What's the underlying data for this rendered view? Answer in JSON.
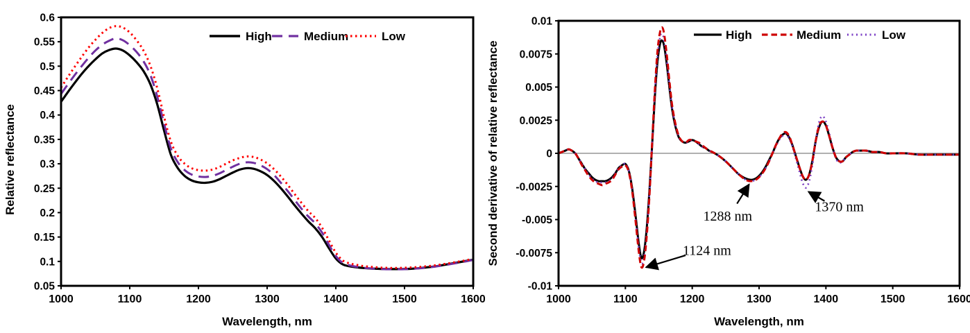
{
  "figure": {
    "background": "#ffffff",
    "description": "Two line charts of spectral reflectance"
  },
  "chart_data": [
    {
      "type": "line",
      "title": "",
      "xlabel": "Wavelength, nm",
      "ylabel": "Relative reflectance",
      "xlim": [
        1000,
        1600
      ],
      "ylim": [
        0.05,
        0.6
      ],
      "grid": false,
      "legend": {
        "position": "top-inside",
        "items": [
          {
            "label": "High",
            "color": "#000000",
            "dash": "solid"
          },
          {
            "label": "Medium",
            "color": "#7030A0",
            "dash": "dashed"
          },
          {
            "label": "Low",
            "color": "#FF0000",
            "dash": "dotted"
          }
        ]
      },
      "xticks": {
        "values": [
          1000,
          1100,
          1200,
          1300,
          1400,
          1500,
          1600
        ],
        "labels": [
          "1000",
          "1100",
          "1200",
          "1300",
          "1400",
          "1500",
          "1600"
        ]
      },
      "yticks": {
        "values": [
          0.6,
          0.55,
          0.5,
          0.45,
          0.4,
          0.35,
          0.3,
          0.25,
          0.2,
          0.15,
          0.1,
          0.05
        ],
        "labels": [
          "0.6",
          "0.55",
          "0.5",
          "0.45",
          "0.4",
          "0.35",
          "0.3",
          "0.25",
          "0.2",
          "0.15",
          "0.1",
          "0.05"
        ]
      },
      "x": [
        1000,
        1010,
        1020,
        1030,
        1040,
        1050,
        1060,
        1070,
        1080,
        1090,
        1100,
        1110,
        1120,
        1130,
        1140,
        1150,
        1160,
        1170,
        1180,
        1190,
        1200,
        1210,
        1220,
        1230,
        1240,
        1250,
        1260,
        1270,
        1280,
        1290,
        1300,
        1310,
        1320,
        1330,
        1340,
        1350,
        1360,
        1370,
        1380,
        1390,
        1400,
        1410,
        1420,
        1430,
        1440,
        1450,
        1460,
        1470,
        1480,
        1490,
        1500,
        1510,
        1520,
        1530,
        1540,
        1550,
        1560,
        1570,
        1580,
        1590,
        1600
      ],
      "series": [
        {
          "name": "High",
          "color": "#000000",
          "dash": "solid",
          "values": [
            0.427,
            0.447,
            0.466,
            0.484,
            0.5,
            0.514,
            0.526,
            0.533,
            0.536,
            0.532,
            0.522,
            0.508,
            0.49,
            0.463,
            0.422,
            0.368,
            0.318,
            0.291,
            0.275,
            0.266,
            0.262,
            0.261,
            0.263,
            0.268,
            0.275,
            0.282,
            0.288,
            0.291,
            0.29,
            0.285,
            0.277,
            0.265,
            0.25,
            0.233,
            0.215,
            0.198,
            0.182,
            0.168,
            0.15,
            0.127,
            0.106,
            0.094,
            0.09,
            0.088,
            0.0865,
            0.0855,
            0.085,
            0.0845,
            0.0843,
            0.0843,
            0.0845,
            0.085,
            0.086,
            0.0875,
            0.089,
            0.091,
            0.0935,
            0.096,
            0.0985,
            0.101,
            0.1035
          ]
        },
        {
          "name": "Medium",
          "color": "#7030A0",
          "dash": "dashed",
          "values": [
            0.443,
            0.463,
            0.482,
            0.5,
            0.517,
            0.532,
            0.544,
            0.552,
            0.557,
            0.553,
            0.543,
            0.529,
            0.51,
            0.482,
            0.438,
            0.382,
            0.331,
            0.303,
            0.287,
            0.278,
            0.274,
            0.273,
            0.275,
            0.28,
            0.287,
            0.294,
            0.3,
            0.303,
            0.302,
            0.297,
            0.289,
            0.277,
            0.261,
            0.244,
            0.226,
            0.208,
            0.192,
            0.178,
            0.159,
            0.134,
            0.111,
            0.097,
            0.092,
            0.089,
            0.087,
            0.0857,
            0.0848,
            0.0842,
            0.084,
            0.084,
            0.0842,
            0.0848,
            0.0857,
            0.087,
            0.0885,
            0.0905,
            0.0928,
            0.0952,
            0.0977,
            0.1003,
            0.103
          ]
        },
        {
          "name": "Low",
          "color": "#FF0000",
          "dash": "dotted",
          "values": [
            0.456,
            0.478,
            0.499,
            0.519,
            0.538,
            0.554,
            0.568,
            0.578,
            0.582,
            0.579,
            0.569,
            0.553,
            0.532,
            0.501,
            0.455,
            0.396,
            0.345,
            0.316,
            0.3,
            0.291,
            0.287,
            0.286,
            0.288,
            0.293,
            0.3,
            0.307,
            0.312,
            0.315,
            0.314,
            0.309,
            0.301,
            0.289,
            0.274,
            0.257,
            0.238,
            0.22,
            0.203,
            0.189,
            0.169,
            0.143,
            0.118,
            0.102,
            0.096,
            0.093,
            0.0905,
            0.089,
            0.0878,
            0.087,
            0.0866,
            0.0866,
            0.087,
            0.0876,
            0.0885,
            0.0898,
            0.0912,
            0.093,
            0.0952,
            0.0975,
            0.1,
            0.1025,
            0.105
          ]
        }
      ]
    },
    {
      "type": "line",
      "title": "",
      "xlabel": "Wavelength, nm",
      "ylabel": "Second derivative of relative reflectance",
      "xlim": [
        1000,
        1600
      ],
      "ylim": [
        -0.01,
        0.01
      ],
      "grid": false,
      "zero_line_color": "#808080",
      "legend": {
        "position": "top-inside",
        "items": [
          {
            "label": "High",
            "color": "#000000",
            "dash": "solid"
          },
          {
            "label": "Medium",
            "color": "#CE0000",
            "dash": "dashed"
          },
          {
            "label": "Low",
            "color": "#7B3FC4",
            "dash": "dotted"
          }
        ]
      },
      "xticks": {
        "values": [
          1000,
          1100,
          1200,
          1300,
          1400,
          1500,
          1600
        ],
        "labels": [
          "1000",
          "1100",
          "1200",
          "1300",
          "1400",
          "1500",
          "1600"
        ]
      },
      "yticks": {
        "values": [
          0.01,
          0.0075,
          0.005,
          0.0025,
          0,
          -0.0025,
          -0.005,
          -0.0075,
          -0.01
        ],
        "labels": [
          "0.01",
          "0.0075",
          "0.005",
          "0.0025",
          "0",
          "-0.0025",
          "-0.005",
          "-0.0075",
          "-0.01"
        ]
      },
      "x": [
        1000,
        1005,
        1010,
        1015,
        1020,
        1025,
        1030,
        1035,
        1040,
        1045,
        1050,
        1055,
        1060,
        1065,
        1070,
        1075,
        1080,
        1085,
        1090,
        1095,
        1100,
        1105,
        1110,
        1115,
        1120,
        1124,
        1128,
        1132,
        1136,
        1140,
        1144,
        1148,
        1152,
        1155,
        1158,
        1162,
        1166,
        1170,
        1175,
        1180,
        1185,
        1190,
        1195,
        1200,
        1205,
        1210,
        1215,
        1220,
        1225,
        1230,
        1240,
        1250,
        1260,
        1270,
        1280,
        1288,
        1295,
        1300,
        1305,
        1310,
        1315,
        1320,
        1325,
        1330,
        1335,
        1340,
        1345,
        1350,
        1355,
        1360,
        1365,
        1370,
        1375,
        1380,
        1385,
        1390,
        1395,
        1400,
        1405,
        1410,
        1415,
        1420,
        1425,
        1430,
        1435,
        1440,
        1445,
        1450,
        1460,
        1470,
        1480,
        1490,
        1500,
        1520,
        1540,
        1560,
        1580,
        1600
      ],
      "series": [
        {
          "name": "High",
          "color": "#000000",
          "dash": "solid",
          "values": [
            0,
            0.0001,
            0.0002,
            0.0003,
            0.0002,
            0,
            -0.0004,
            -0.0008,
            -0.0012,
            -0.0015,
            -0.0018,
            -0.002,
            -0.0021,
            -0.0021,
            -0.0021,
            -0.002,
            -0.0018,
            -0.0015,
            -0.0011,
            -0.0009,
            -0.0008,
            -0.0013,
            -0.0026,
            -0.0046,
            -0.0068,
            -0.0079,
            -0.0074,
            -0.0056,
            -0.0028,
            0.0006,
            0.0042,
            0.0069,
            0.0083,
            0.0085,
            0.0081,
            0.0067,
            0.0049,
            0.0033,
            0.002,
            0.0012,
            0.0009,
            0.0008,
            0.0009,
            0.001,
            0.0009,
            0.0007,
            0.0005,
            0.0004,
            0.0002,
            0.0001,
            -0.0002,
            -0.0006,
            -0.0011,
            -0.0016,
            -0.0019,
            -0.002,
            -0.0019,
            -0.0017,
            -0.0014,
            -0.001,
            -0.0005,
            0.0,
            0.0006,
            0.0011,
            0.0014,
            0.0015,
            0.0012,
            0.0006,
            -0.0002,
            -0.001,
            -0.0017,
            -0.002,
            -0.0016,
            -0.0005,
            0.001,
            0.002,
            0.0024,
            0.0021,
            0.0013,
            0.0004,
            -0.0003,
            -0.0006,
            -0.0006,
            -0.0003,
            -0.0001,
            0.0001,
            0.0002,
            0.0002,
            0.0002,
            0.0001,
            0.0001,
            0.0,
            0.0,
            0.0,
            -0.0001,
            -0.0001,
            -0.0001,
            -0.0001
          ]
        },
        {
          "name": "Medium",
          "color": "#CE0000",
          "dash": "dashed",
          "values": [
            0,
            0.0001,
            0.0002,
            0.0003,
            0.0002,
            0,
            -0.0004,
            -0.0009,
            -0.0013,
            -0.0017,
            -0.002,
            -0.0022,
            -0.0023,
            -0.0024,
            -0.0023,
            -0.0022,
            -0.002,
            -0.0016,
            -0.0012,
            -0.001,
            -0.0009,
            -0.0014,
            -0.0028,
            -0.005,
            -0.0074,
            -0.0086,
            -0.0081,
            -0.0062,
            -0.0032,
            0.0008,
            0.0047,
            0.0077,
            0.0092,
            0.0095,
            0.009,
            0.0074,
            0.0054,
            0.0036,
            0.0022,
            0.0013,
            0.0009,
            0.0008,
            0.001,
            0.001,
            0.0009,
            0.0008,
            0.0006,
            0.0004,
            0.0002,
            0.0001,
            -0.0002,
            -0.0006,
            -0.0011,
            -0.0016,
            -0.002,
            -0.0021,
            -0.002,
            -0.0018,
            -0.0015,
            -0.0011,
            -0.0006,
            0.0,
            0.0006,
            0.0011,
            0.0015,
            0.0016,
            0.0013,
            0.0006,
            -0.0002,
            -0.001,
            -0.0017,
            -0.002,
            -0.0016,
            -0.0005,
            0.001,
            0.0021,
            0.0024,
            0.0021,
            0.0013,
            0.0004,
            -0.0003,
            -0.0006,
            -0.0006,
            -0.0003,
            -0.0001,
            0.0001,
            0.0002,
            0.0002,
            0.0002,
            0.0001,
            0.0001,
            0.0,
            0.0,
            0.0,
            -0.0001,
            -0.0001,
            -0.0001,
            -0.0001
          ]
        },
        {
          "name": "Low",
          "color": "#7B3FC4",
          "dash": "dotted",
          "values": [
            0,
            0.0001,
            0.0002,
            0.0003,
            0.0002,
            0,
            -0.0004,
            -0.0008,
            -0.0012,
            -0.0016,
            -0.0019,
            -0.0021,
            -0.0022,
            -0.0022,
            -0.0022,
            -0.0021,
            -0.0019,
            -0.0015,
            -0.0011,
            -0.0009,
            -0.0008,
            -0.0013,
            -0.0027,
            -0.0048,
            -0.0071,
            -0.0083,
            -0.0078,
            -0.0059,
            -0.003,
            0.0006,
            0.0044,
            0.0073,
            0.0088,
            0.009,
            0.0085,
            0.007,
            0.0051,
            0.0034,
            0.0021,
            0.0012,
            0.0009,
            0.0008,
            0.0009,
            0.001,
            0.0009,
            0.0007,
            0.0005,
            0.0004,
            0.0002,
            0.0001,
            -0.0002,
            -0.0006,
            -0.0011,
            -0.0016,
            -0.002,
            -0.0021,
            -0.002,
            -0.0018,
            -0.0015,
            -0.0011,
            -0.0006,
            0.0,
            0.0005,
            0.001,
            0.0013,
            0.0015,
            0.0011,
            0.0005,
            -0.0004,
            -0.0013,
            -0.0022,
            -0.0026,
            -0.0021,
            -0.0008,
            0.001,
            0.0024,
            0.0028,
            0.0024,
            0.0015,
            0.0005,
            -0.0004,
            -0.0007,
            -0.0006,
            -0.0003,
            -0.0001,
            0.0001,
            0.0002,
            0.0002,
            0.0002,
            0.0001,
            0.0001,
            0.0,
            0.0,
            0.0,
            -0.0001,
            -0.0001,
            -0.0001,
            -0.0001
          ]
        }
      ],
      "annotations": [
        {
          "text": "1124 nm",
          "label_at": [
            1222,
            -0.0073
          ],
          "arrow_from": [
            1190,
            -0.0077
          ],
          "arrow_to": [
            1131,
            -0.0086
          ]
        },
        {
          "text": "1288 nm",
          "label_at": [
            1253,
            -0.0047
          ],
          "arrow_from": [
            1267,
            -0.0038
          ],
          "arrow_to": [
            1285,
            -0.00235
          ]
        },
        {
          "text": "1370 nm",
          "label_at": [
            1420,
            -0.004
          ],
          "arrow_from": [
            1398,
            -0.0036
          ],
          "arrow_to": [
            1374,
            -0.0029
          ]
        }
      ]
    }
  ]
}
